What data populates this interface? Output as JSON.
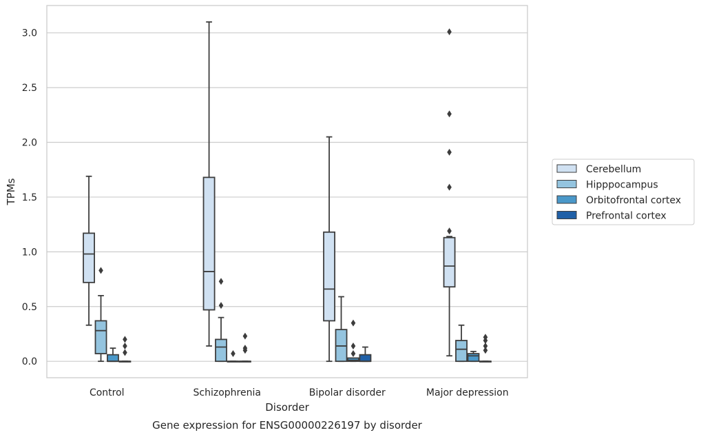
{
  "chart_data": {
    "type": "boxplot",
    "title": "Gene expression for ENSG00000226197 by disorder",
    "xlabel": "Disorder",
    "ylabel": "TPMs",
    "ylim": [
      -0.15,
      3.25
    ],
    "yticks": [
      "0.0",
      "0.5",
      "1.0",
      "1.5",
      "2.0",
      "2.5",
      "3.0"
    ],
    "grid": "horizontal",
    "legend_position": "right",
    "categories": [
      "Control",
      "Schizophrenia",
      "Bipolar disorder",
      "Major depression"
    ],
    "series": [
      {
        "name": "Cerebellum",
        "color": "#d0e1f2",
        "boxes": [
          {
            "whislo": 0.33,
            "q1": 0.72,
            "med": 0.98,
            "q3": 1.17,
            "whishi": 1.69,
            "fliers": []
          },
          {
            "whislo": 0.14,
            "q1": 0.47,
            "med": 0.82,
            "q3": 1.68,
            "whishi": 3.1,
            "fliers": []
          },
          {
            "whislo": 0.0,
            "q1": 0.37,
            "med": 0.66,
            "q3": 1.18,
            "whishi": 2.05,
            "fliers": []
          },
          {
            "whislo": 0.05,
            "q1": 0.68,
            "med": 0.87,
            "q3": 1.13,
            "whishi": 1.14,
            "fliers": [
              3.01,
              2.26,
              1.91,
              1.59,
              1.19
            ]
          }
        ]
      },
      {
        "name": "Hipppocampus",
        "color": "#94c4df",
        "boxes": [
          {
            "whislo": 0.0,
            "q1": 0.07,
            "med": 0.28,
            "q3": 0.37,
            "whishi": 0.6,
            "fliers": [
              0.83
            ]
          },
          {
            "whislo": 0.0,
            "q1": 0.0,
            "med": 0.13,
            "q3": 0.2,
            "whishi": 0.4,
            "fliers": [
              0.51,
              0.73
            ]
          },
          {
            "whislo": 0.0,
            "q1": 0.0,
            "med": 0.14,
            "q3": 0.29,
            "whishi": 0.59,
            "fliers": []
          },
          {
            "whislo": 0.0,
            "q1": 0.0,
            "med": 0.11,
            "q3": 0.19,
            "whishi": 0.33,
            "fliers": []
          }
        ]
      },
      {
        "name": "Orbitofrontal cortex",
        "color": "#4a98c9",
        "boxes": [
          {
            "whislo": 0.0,
            "q1": 0.0,
            "med": 0.0,
            "q3": 0.06,
            "whishi": 0.12,
            "fliers": []
          },
          {
            "whislo": 0.0,
            "q1": 0.0,
            "med": 0.0,
            "q3": 0.0,
            "whishi": 0.0,
            "fliers": [
              0.07
            ]
          },
          {
            "whislo": 0.0,
            "q1": 0.0,
            "med": 0.01,
            "q3": 0.03,
            "whishi": 0.03,
            "fliers": [
              0.07,
              0.14,
              0.35
            ]
          },
          {
            "whislo": 0.0,
            "q1": 0.0,
            "med": 0.05,
            "q3": 0.07,
            "whishi": 0.09,
            "fliers": []
          }
        ]
      },
      {
        "name": "Prefrontal cortex",
        "color": "#2060a7",
        "boxes": [
          {
            "whislo": 0.0,
            "q1": 0.0,
            "med": 0.0,
            "q3": 0.0,
            "whishi": 0.0,
            "fliers": [
              0.08,
              0.14,
              0.2
            ]
          },
          {
            "whislo": 0.0,
            "q1": 0.0,
            "med": 0.0,
            "q3": 0.0,
            "whishi": 0.0,
            "fliers": [
              0.1,
              0.12,
              0.23
            ]
          },
          {
            "whislo": 0.0,
            "q1": 0.0,
            "med": 0.0,
            "q3": 0.06,
            "whishi": 0.13,
            "fliers": []
          },
          {
            "whislo": 0.0,
            "q1": 0.0,
            "med": 0.0,
            "q3": 0.0,
            "whishi": 0.0,
            "fliers": [
              0.1,
              0.14,
              0.19,
              0.22
            ]
          }
        ]
      }
    ]
  }
}
